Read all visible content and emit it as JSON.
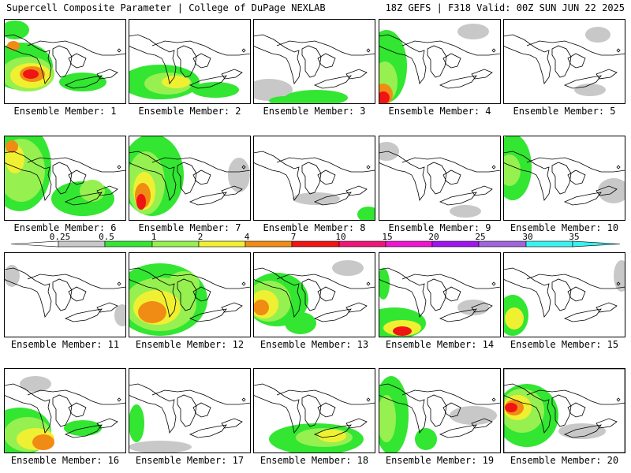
{
  "header": {
    "title_left": "Supercell Composite Parameter | College of DuPage NEXLAB",
    "title_right": "18Z GEFS | F318 Valid: 00Z SUN JUN 22 2025"
  },
  "member_label_prefix": "Ensemble Member: ",
  "members": [
    {
      "number": "1"
    },
    {
      "number": "2"
    },
    {
      "number": "3"
    },
    {
      "number": "4"
    },
    {
      "number": "5"
    },
    {
      "number": "6"
    },
    {
      "number": "7"
    },
    {
      "number": "8"
    },
    {
      "number": "9"
    },
    {
      "number": "10"
    },
    {
      "number": "11"
    },
    {
      "number": "12"
    },
    {
      "number": "13"
    },
    {
      "number": "14"
    },
    {
      "number": "15"
    },
    {
      "number": "16"
    },
    {
      "number": "17"
    },
    {
      "number": "18"
    },
    {
      "number": "19"
    },
    {
      "number": "20"
    }
  ],
  "colorbar": {
    "ticks": [
      "0.25",
      "0.5",
      "1",
      "2",
      "4",
      "7",
      "10",
      "15",
      "20",
      "25",
      "30",
      "35"
    ],
    "colors": [
      "#c8c8c8",
      "#32e632",
      "#96f050",
      "#f0f032",
      "#f08c14",
      "#f01414",
      "#f01478",
      "#f014d2",
      "#a014f0",
      "#a064dc",
      "#3cf0f0"
    ]
  },
  "colors": {
    "gray": "#c8c8c8",
    "green": "#32e632",
    "lgreen": "#96f050",
    "yellow": "#f0f032",
    "orange": "#f08c14",
    "red": "#f01414"
  }
}
